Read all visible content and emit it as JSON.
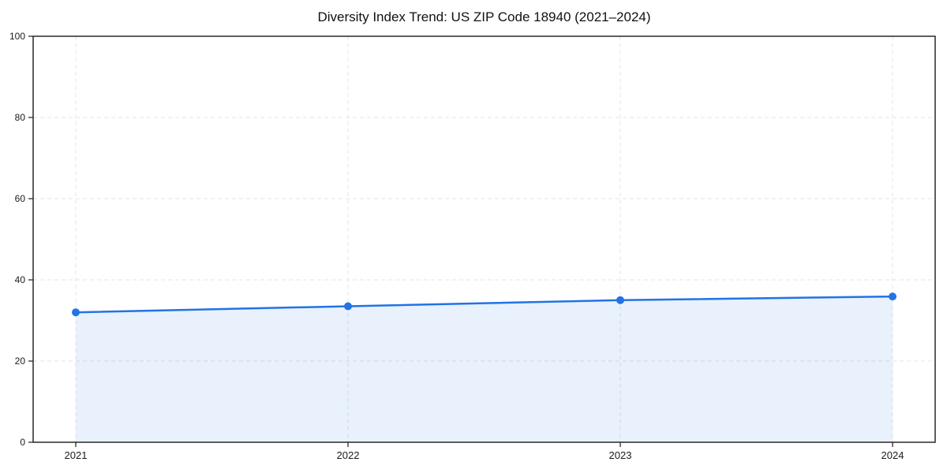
{
  "chart_data": {
    "type": "area",
    "title": "Diversity Index Trend: US ZIP Code 18940 (2021–2024)",
    "categories": [
      "2021",
      "2022",
      "2023",
      "2024"
    ],
    "series": [
      {
        "name": "Diversity Index",
        "values": [
          32,
          33.5,
          35,
          35.9
        ]
      }
    ],
    "xlabel": "",
    "ylabel": "",
    "ylim": [
      0,
      100
    ],
    "yticks": [
      0,
      20,
      40,
      60,
      80,
      100
    ],
    "grid": true,
    "legend": "none",
    "line_color": "#2273e5",
    "marker_color": "#2273e5",
    "fill_color": "#2273e5",
    "fill_opacity": 0.1,
    "gridline_color": "#e4e4e4",
    "axis_color": "#1a1a1a"
  }
}
